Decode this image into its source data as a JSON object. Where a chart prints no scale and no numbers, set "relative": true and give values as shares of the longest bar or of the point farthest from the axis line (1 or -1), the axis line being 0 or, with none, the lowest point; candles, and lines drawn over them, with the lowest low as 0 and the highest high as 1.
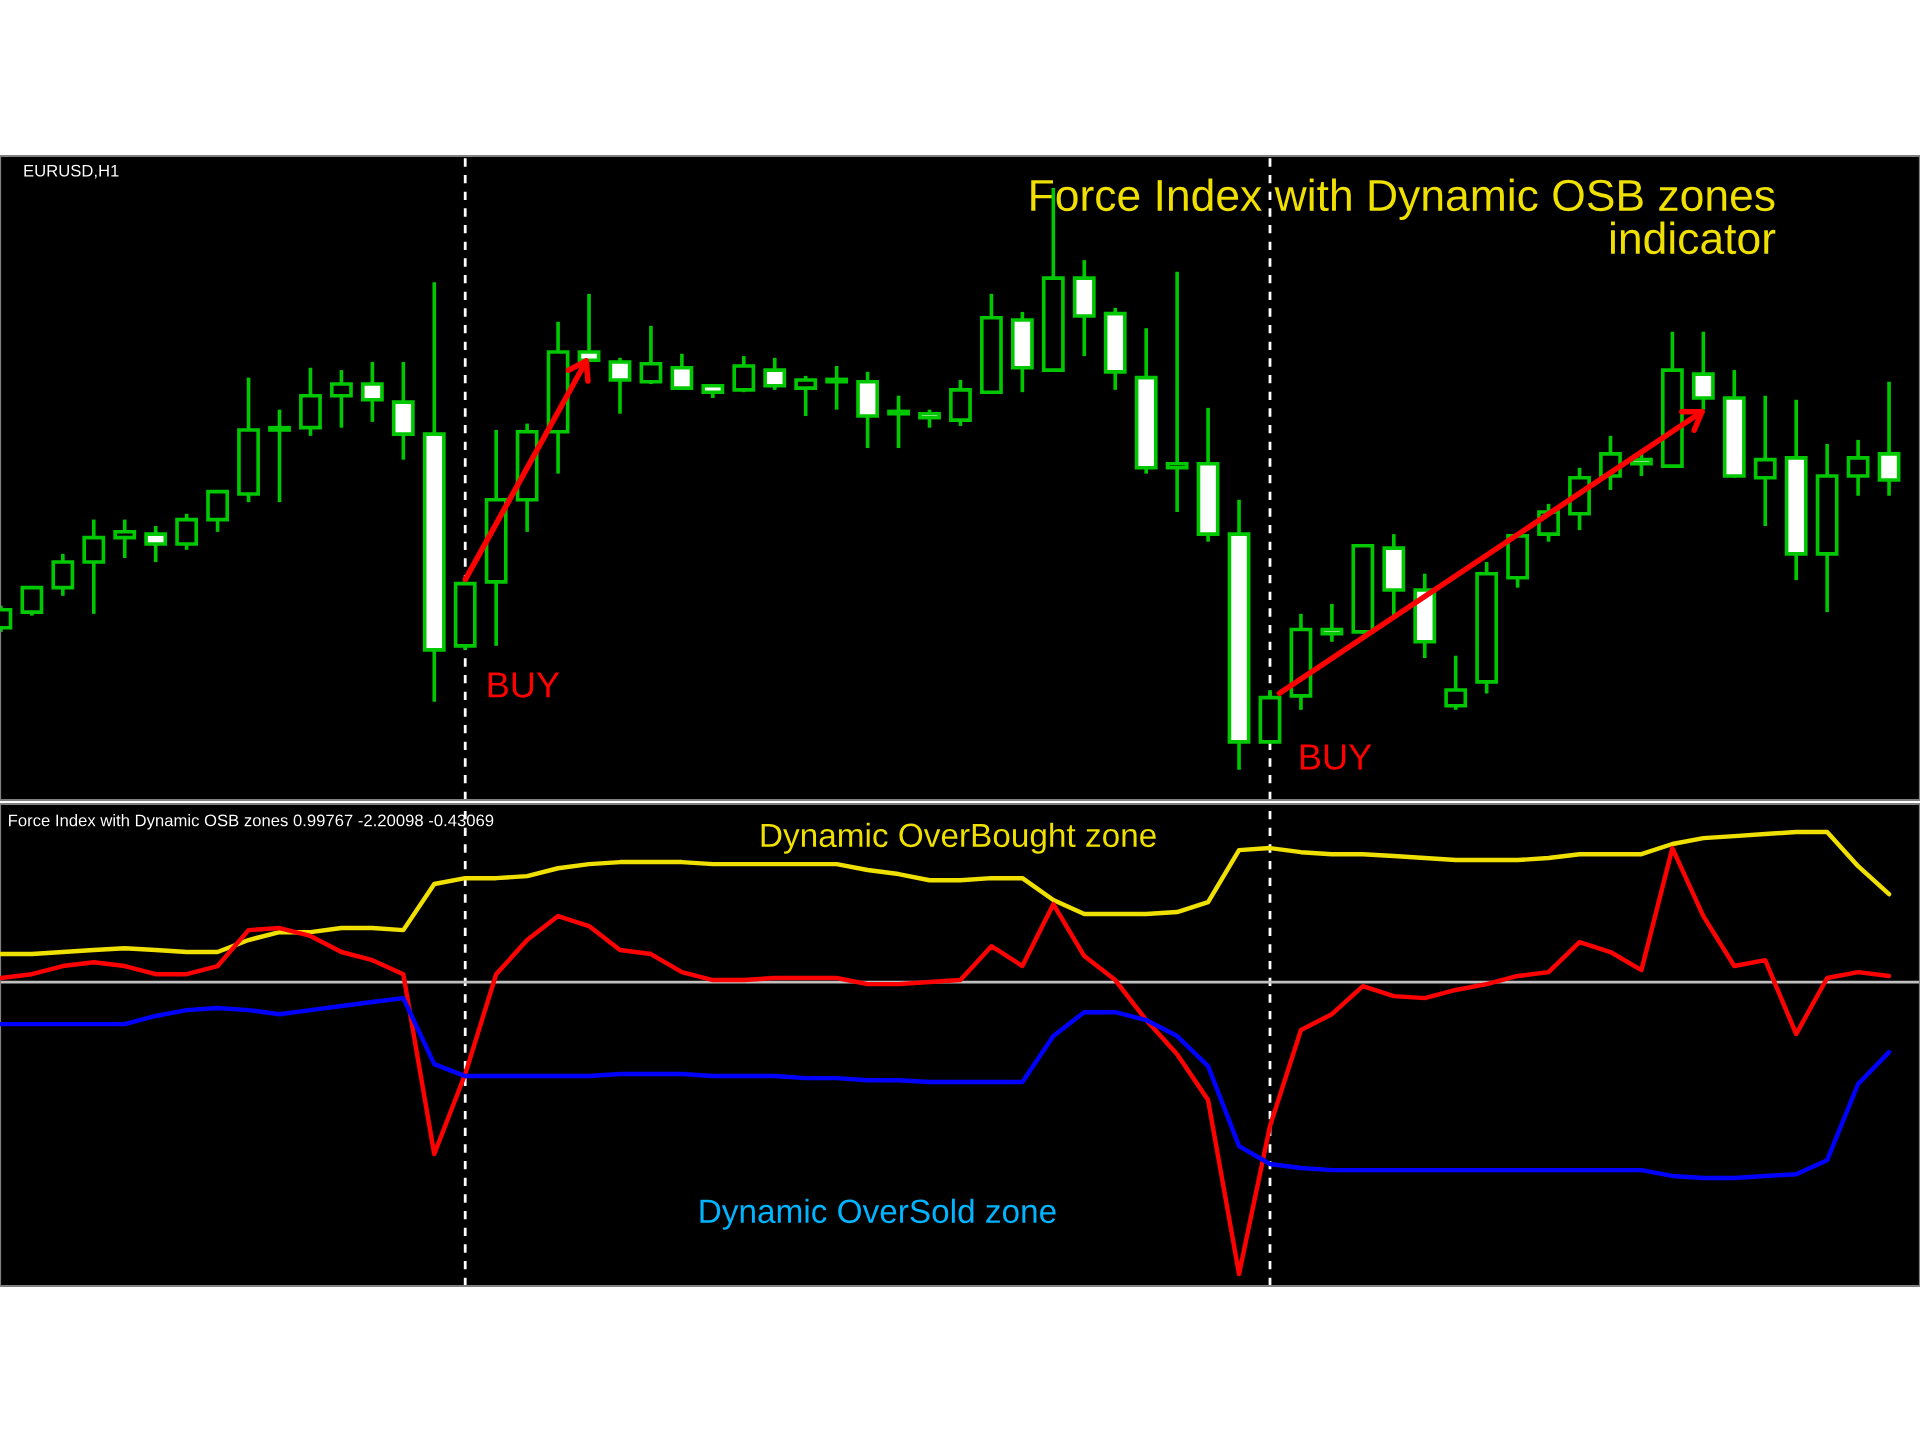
{
  "chart_data": [
    {
      "type": "candlestick",
      "title": "Force Index with Dynamic OSB zones indicator",
      "subtitle": "EURUSD,H1",
      "relative": true,
      "color": "#00c800",
      "categories": [
        null,
        null,
        null,
        null,
        null,
        null,
        null,
        null,
        null,
        null,
        null,
        null,
        null,
        null,
        null,
        null,
        null,
        null,
        null,
        null,
        null,
        null,
        null,
        null,
        null,
        null,
        null,
        null,
        null,
        null,
        null,
        null,
        null,
        null,
        null,
        null,
        null,
        null,
        null,
        null,
        null,
        null,
        null,
        null,
        null,
        null,
        null,
        null,
        null,
        null,
        null,
        null,
        null,
        null,
        null,
        null,
        null,
        null,
        null,
        null,
        null,
        null
      ],
      "ohlc": [
        [
          0.244,
          0.282,
          0.237,
          0.275
        ],
        [
          0.271,
          0.316,
          0.265,
          0.313
        ],
        [
          0.313,
          0.371,
          0.299,
          0.357
        ],
        [
          0.357,
          0.43,
          0.268,
          0.399
        ],
        [
          0.399,
          0.43,
          0.364,
          0.409
        ],
        [
          0.405,
          0.419,
          0.357,
          0.388
        ],
        [
          0.388,
          0.44,
          0.378,
          0.43
        ],
        [
          0.43,
          0.481,
          0.409,
          0.478
        ],
        [
          0.474,
          0.674,
          0.46,
          0.584
        ],
        [
          0.584,
          0.619,
          0.46,
          0.588
        ],
        [
          0.588,
          0.691,
          0.574,
          0.643
        ],
        [
          0.643,
          0.687,
          0.588,
          0.663
        ],
        [
          0.663,
          0.701,
          0.598,
          0.636
        ],
        [
          0.632,
          0.701,
          0.533,
          0.577
        ],
        [
          0.577,
          0.838,
          0.117,
          0.206
        ],
        [
          0.213,
          0.326,
          0.206,
          0.32
        ],
        [
          0.323,
          0.584,
          0.213,
          0.464
        ],
        [
          0.464,
          0.595,
          0.409,
          0.581
        ],
        [
          0.581,
          0.77,
          0.509,
          0.718
        ],
        [
          0.718,
          0.818,
          0.701,
          0.704
        ],
        [
          0.701,
          0.708,
          0.612,
          0.67
        ],
        [
          0.667,
          0.763,
          0.663,
          0.698
        ],
        [
          0.691,
          0.715,
          0.653,
          0.656
        ],
        [
          0.66,
          0.663,
          0.639,
          0.649
        ],
        [
          0.653,
          0.711,
          0.649,
          0.694
        ],
        [
          0.687,
          0.708,
          0.653,
          0.66
        ],
        [
          0.656,
          0.677,
          0.608,
          0.67
        ],
        [
          0.667,
          0.694,
          0.619,
          0.667
        ],
        [
          0.667,
          0.684,
          0.553,
          0.608
        ],
        [
          0.612,
          0.643,
          0.553,
          0.612
        ],
        [
          0.612,
          0.619,
          0.588,
          0.605
        ],
        [
          0.601,
          0.67,
          0.591,
          0.653
        ],
        [
          0.649,
          0.818,
          0.646,
          0.777
        ],
        [
          0.773,
          0.787,
          0.649,
          0.691
        ],
        [
          0.687,
          1.0,
          0.684,
          0.845
        ],
        [
          0.845,
          0.876,
          0.711,
          0.78
        ],
        [
          0.784,
          0.794,
          0.653,
          0.684
        ],
        [
          0.674,
          0.759,
          0.509,
          0.519
        ],
        [
          0.519,
          0.856,
          0.443,
          0.526
        ],
        [
          0.526,
          0.622,
          0.392,
          0.405
        ],
        [
          0.405,
          0.464,
          0.0,
          0.048
        ],
        [
          0.048,
          0.137,
          0.045,
          0.124
        ],
        [
          0.127,
          0.268,
          0.103,
          0.241
        ],
        [
          0.241,
          0.285,
          0.22,
          0.234
        ],
        [
          0.237,
          0.388,
          0.234,
          0.385
        ],
        [
          0.381,
          0.405,
          0.265,
          0.309
        ],
        [
          0.309,
          0.337,
          0.192,
          0.22
        ],
        [
          0.11,
          0.196,
          0.103,
          0.137
        ],
        [
          0.151,
          0.357,
          0.131,
          0.337
        ],
        [
          0.33,
          0.405,
          0.313,
          0.402
        ],
        [
          0.405,
          0.457,
          0.392,
          0.443
        ],
        [
          0.44,
          0.519,
          0.412,
          0.502
        ],
        [
          0.505,
          0.574,
          0.481,
          0.543
        ],
        [
          0.533,
          0.55,
          0.505,
          0.526
        ],
        [
          0.522,
          0.753,
          0.519,
          0.687
        ],
        [
          0.68,
          0.753,
          0.619,
          0.639
        ],
        [
          0.639,
          0.687,
          0.502,
          0.505
        ],
        [
          0.502,
          0.643,
          0.419,
          0.533
        ],
        [
          0.536,
          0.636,
          0.326,
          0.371
        ],
        [
          0.371,
          0.56,
          0.271,
          0.505
        ],
        [
          0.505,
          0.567,
          0.471,
          0.536
        ],
        [
          0.543,
          0.667,
          0.471,
          0.498
        ]
      ],
      "annotations": [
        "BUY",
        "BUY"
      ],
      "grid": false,
      "legend": false
    },
    {
      "type": "line",
      "title": "Force Index with Dynamic OSB zones 0.99767 -2.20098 -0.43069",
      "relative": true,
      "categories": [
        null,
        null,
        null,
        null,
        null,
        null,
        null,
        null,
        null,
        null,
        null,
        null,
        null,
        null,
        null,
        null,
        null,
        null,
        null,
        null,
        null,
        null,
        null,
        null,
        null,
        null,
        null,
        null,
        null,
        null,
        null,
        null,
        null,
        null,
        null,
        null,
        null,
        null,
        null,
        null,
        null,
        null,
        null,
        null,
        null,
        null,
        null,
        null,
        null,
        null,
        null,
        null,
        null,
        null,
        null,
        null,
        null,
        null,
        null,
        null,
        null,
        null
      ],
      "series": [
        {
          "color": "#f0e000",
          "values": [
            0.096,
            0.096,
            0.103,
            0.11,
            0.116,
            0.11,
            0.103,
            0.103,
            0.144,
            0.171,
            0.171,
            0.185,
            0.185,
            0.178,
            0.336,
            0.356,
            0.356,
            0.363,
            0.39,
            0.404,
            0.411,
            0.411,
            0.411,
            0.404,
            0.404,
            0.404,
            0.404,
            0.404,
            0.384,
            0.37,
            0.349,
            0.349,
            0.356,
            0.356,
            0.281,
            0.233,
            0.233,
            0.233,
            0.24,
            0.274,
            0.452,
            0.459,
            0.445,
            0.438,
            0.438,
            0.432,
            0.425,
            0.418,
            0.418,
            0.418,
            0.425,
            0.438,
            0.438,
            0.438,
            0.473,
            0.493,
            0.5,
            0.507,
            0.514,
            0.514,
            0.397,
            0.301
          ]
        },
        {
          "color": "#ff0000",
          "values": [
            0.014,
            0.027,
            0.055,
            0.068,
            0.055,
            0.027,
            0.027,
            0.055,
            0.178,
            0.185,
            0.158,
            0.103,
            0.075,
            0.027,
            -0.589,
            -0.315,
            0.027,
            0.144,
            0.226,
            0.192,
            0.11,
            0.096,
            0.034,
            0.007,
            0.007,
            0.014,
            0.014,
            0.014,
            -0.007,
            -0.007,
            0.0,
            0.007,
            0.123,
            0.055,
            0.267,
            0.089,
            0.007,
            -0.13,
            -0.247,
            -0.404,
            -1.0,
            -0.493,
            -0.164,
            -0.11,
            -0.014,
            -0.048,
            -0.055,
            -0.027,
            -0.007,
            0.021,
            0.034,
            0.137,
            0.103,
            0.041,
            0.459,
            0.226,
            0.055,
            0.075,
            -0.178,
            0.014,
            0.034,
            0.021
          ]
        },
        {
          "color": "#0000ff",
          "values": [
            -0.144,
            -0.144,
            -0.144,
            -0.144,
            -0.144,
            -0.116,
            -0.096,
            -0.089,
            -0.096,
            -0.11,
            -0.096,
            -0.082,
            -0.068,
            -0.055,
            -0.281,
            -0.322,
            -0.322,
            -0.322,
            -0.322,
            -0.322,
            -0.315,
            -0.315,
            -0.315,
            -0.322,
            -0.322,
            -0.322,
            -0.329,
            -0.329,
            -0.336,
            -0.336,
            -0.342,
            -0.342,
            -0.342,
            -0.342,
            -0.185,
            -0.103,
            -0.103,
            -0.13,
            -0.185,
            -0.288,
            -0.562,
            -0.623,
            -0.637,
            -0.644,
            -0.644,
            -0.644,
            -0.644,
            -0.644,
            -0.644,
            -0.644,
            -0.644,
            -0.644,
            -0.644,
            -0.644,
            -0.664,
            -0.671,
            -0.671,
            -0.664,
            -0.658,
            -0.61,
            -0.349,
            -0.24
          ]
        }
      ],
      "ref_lines": [
        {
          "axis": "y",
          "value": 0,
          "color": "#c0c0c0",
          "line_style": "solid"
        }
      ],
      "annotations": [
        "Dynamic OverBought zone",
        "Dynamic OverSold zone"
      ],
      "grid": false,
      "legend": false
    }
  ]
}
